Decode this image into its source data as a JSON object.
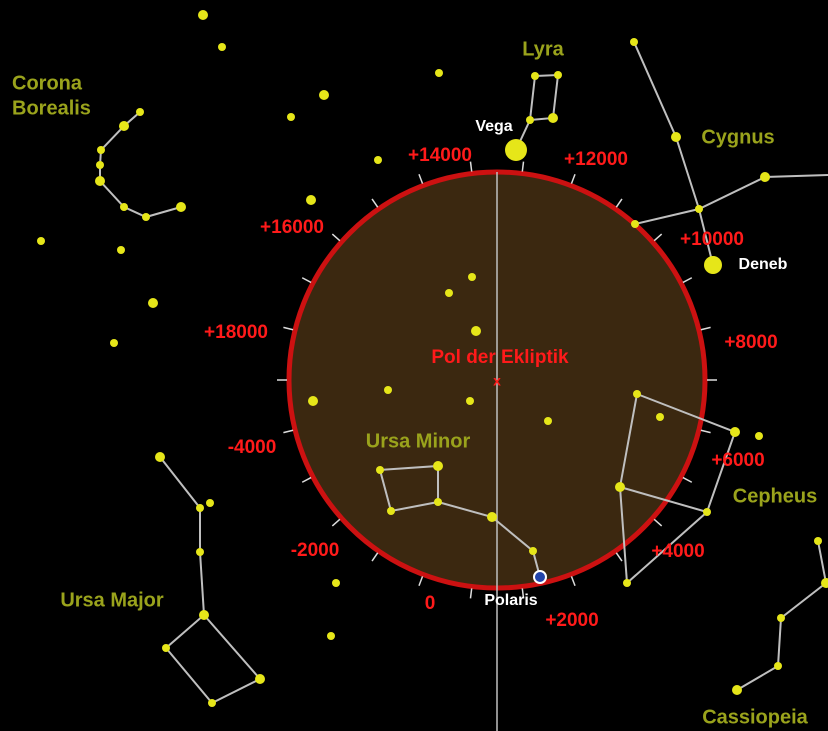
{
  "pole_label": "Pol der Ekliptik",
  "constellations": [
    {
      "lines": [
        "Lyra"
      ]
    },
    {
      "lines": [
        "Cygnus"
      ]
    },
    {
      "lines": [
        "Corona",
        "Borealis"
      ]
    },
    {
      "lines": [
        "Ursa Minor"
      ]
    },
    {
      "lines": [
        "Cepheus"
      ]
    },
    {
      "lines": [
        "Ursa Major"
      ]
    },
    {
      "lines": [
        "Cassiopeia"
      ]
    }
  ],
  "stars": [
    "Vega",
    "Deneb",
    "Polaris"
  ],
  "years": [
    "+14000",
    "+12000",
    "+16000",
    "+10000",
    "+18000",
    "+8000",
    "-4000",
    "+6000",
    "-2000",
    "+4000",
    "0",
    "+2000"
  ]
}
